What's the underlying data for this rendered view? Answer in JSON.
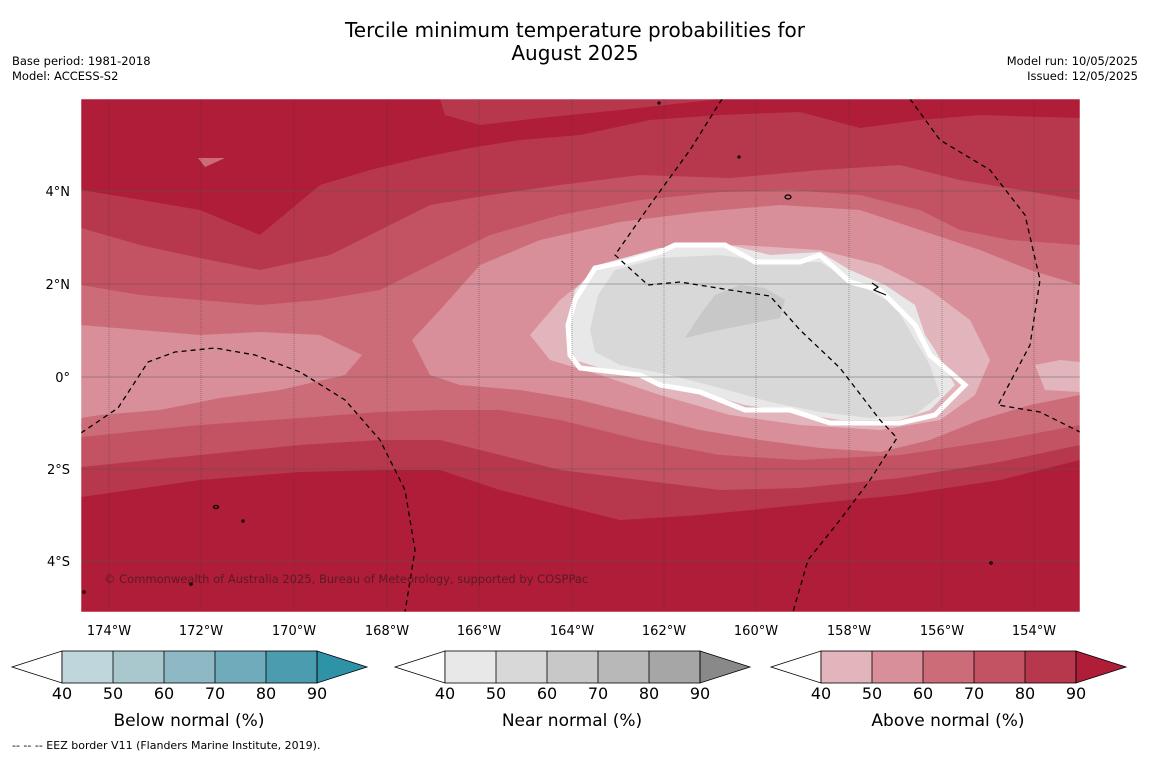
{
  "title": {
    "line1": "Tercile minimum temperature probabilities for",
    "line2": "August 2025"
  },
  "meta_left": {
    "base_period": "Base period: 1981-2018",
    "model": "Model: ACCESS-S2"
  },
  "meta_right": {
    "model_run": "Model run: 10/05/2025",
    "issued": "Issued: 12/05/2025"
  },
  "map": {
    "lat_labels": [
      "4°N",
      "2°N",
      "0°",
      "2°S",
      "4°S"
    ],
    "lon_labels": [
      "174°W",
      "172°W",
      "170°W",
      "168°W",
      "166°W",
      "164°W",
      "162°W",
      "160°W",
      "158°W",
      "156°W",
      "154°W"
    ],
    "copyright": "© Commonwealth of Australia 2025, Bureau of Meteorology, supported by COSPPac",
    "colors": {
      "above_40": "#e2b5bc",
      "above_50": "#d88f99",
      "above_60": "#cd6c79",
      "above_70": "#c35263",
      "above_80": "#b7384d",
      "above_90": "#b01d39",
      "near_40": "#e8e8e8",
      "near_50": "#d8d8d8",
      "near_60": "#c8c8c8"
    }
  },
  "colorbars": [
    {
      "title": "Below normal (%)",
      "ticks": [
        "40",
        "50",
        "60",
        "70",
        "80",
        "90"
      ],
      "colors": [
        "#bed6dc",
        "#a8c8ce",
        "#8db8c4",
        "#6fabbb",
        "#4a9cae",
        "#2f93a8"
      ]
    },
    {
      "title": "Near normal (%)",
      "ticks": [
        "40",
        "50",
        "60",
        "70",
        "80",
        "90"
      ],
      "colors": [
        "#e8e8e8",
        "#d8d8d8",
        "#c8c8c8",
        "#b8b8b8",
        "#a6a6a6",
        "#898989"
      ]
    },
    {
      "title": "Above normal (%)",
      "ticks": [
        "40",
        "50",
        "60",
        "70",
        "80",
        "90"
      ],
      "colors": [
        "#e2b5bc",
        "#d88f99",
        "#cd6c79",
        "#c35263",
        "#b7384d",
        "#b01d39"
      ]
    }
  ],
  "eez_note": "--  --  -- EEZ border V11 (Flanders Marine Institute, 2019)."
}
